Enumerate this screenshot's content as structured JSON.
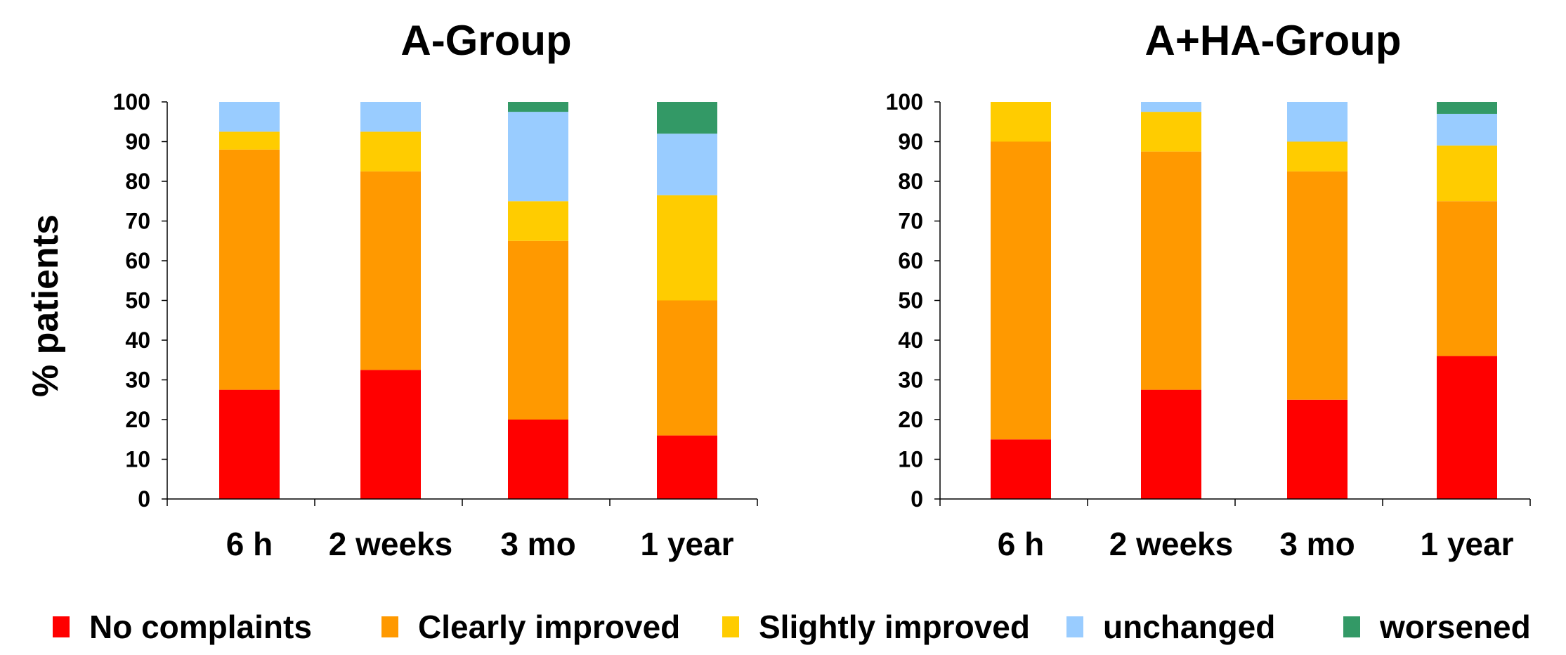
{
  "chart_data": [
    {
      "type": "bar",
      "stacked": true,
      "title": "A-Group",
      "ylabel": "% patients",
      "xlabel": "",
      "ylim": [
        0,
        100
      ],
      "yticks": [
        "0",
        "10",
        "20",
        "30",
        "40",
        "50",
        "60",
        "70",
        "80",
        "90",
        "100"
      ],
      "categories": [
        "6 h",
        "2 weeks",
        "3 mo",
        "1 year"
      ],
      "series": [
        {
          "name": "No complaints",
          "color": "#ff0000",
          "values": [
            27.5,
            32.5,
            20,
            16
          ]
        },
        {
          "name": "Clearly improved",
          "color": "#ff9900",
          "values": [
            60.5,
            50,
            45,
            34
          ]
        },
        {
          "name": "Slightly improved",
          "color": "#ffcc00",
          "values": [
            4.5,
            10,
            10,
            26.5
          ]
        },
        {
          "name": "unchanged",
          "color": "#99ccff",
          "values": [
            7.5,
            7.5,
            22.5,
            15.5
          ]
        },
        {
          "name": "worsened",
          "color": "#339966",
          "values": [
            0,
            0,
            2.5,
            8
          ]
        }
      ],
      "grid": false,
      "legend": "bottom"
    },
    {
      "type": "bar",
      "stacked": true,
      "title": "A+HA-Group",
      "ylabel": "",
      "xlabel": "",
      "ylim": [
        0,
        100
      ],
      "yticks": [
        "0",
        "10",
        "20",
        "30",
        "40",
        "50",
        "60",
        "70",
        "80",
        "90",
        "100"
      ],
      "categories": [
        "6 h",
        "2 weeks",
        "3 mo",
        "1 year"
      ],
      "series": [
        {
          "name": "No complaints",
          "color": "#ff0000",
          "values": [
            15,
            27.5,
            25,
            36
          ]
        },
        {
          "name": "Clearly improved",
          "color": "#ff9900",
          "values": [
            75,
            60,
            57.5,
            39
          ]
        },
        {
          "name": "Slightly improved",
          "color": "#ffcc00",
          "values": [
            10,
            10,
            7.5,
            14
          ]
        },
        {
          "name": "unchanged",
          "color": "#99ccff",
          "values": [
            0,
            2.5,
            10,
            8
          ]
        },
        {
          "name": "worsened",
          "color": "#339966",
          "values": [
            0,
            0,
            0,
            3
          ]
        }
      ],
      "grid": false,
      "legend": "bottom"
    }
  ],
  "legend": [
    {
      "label": "No complaints",
      "color": "#ff0000"
    },
    {
      "label": "Clearly improved",
      "color": "#ff9900"
    },
    {
      "label": "Slightly improved",
      "color": "#ffcc00"
    },
    {
      "label": "unchanged",
      "color": "#99ccff"
    },
    {
      "label": "worsened",
      "color": "#339966"
    }
  ]
}
